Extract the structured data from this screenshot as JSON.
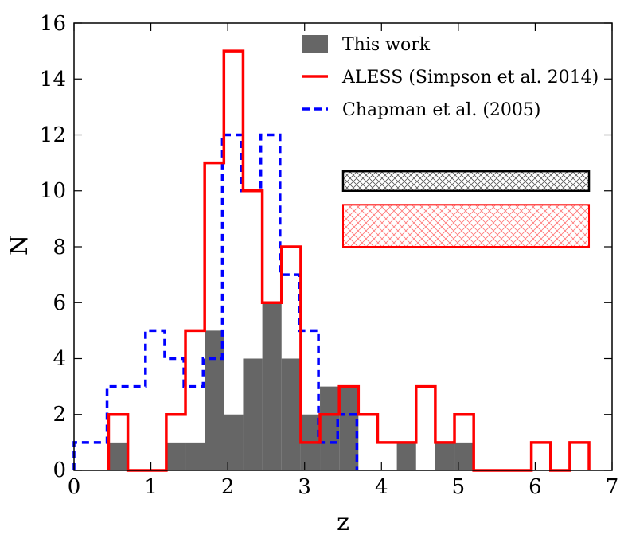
{
  "chart_data": {
    "type": "histogram",
    "title": "",
    "xlabel": "z",
    "ylabel": "N",
    "xlim": [
      0,
      7
    ],
    "ylim": [
      0,
      16
    ],
    "x_ticks": [
      "0",
      "1",
      "2",
      "3",
      "4",
      "5",
      "6",
      "7"
    ],
    "y_ticks": [
      "0",
      "2",
      "4",
      "6",
      "8",
      "10",
      "12",
      "14",
      "16"
    ],
    "grid": false,
    "legend": {
      "position": "top-right",
      "entries": [
        {
          "label": "This work",
          "style": "filled",
          "color": "#666666"
        },
        {
          "label": "ALESS (Simpson et al. 2014)",
          "style": "solid",
          "color": "#ff0000"
        },
        {
          "label": "Chapman et al. (2005)",
          "style": "dashed",
          "color": "#0000ff"
        }
      ]
    },
    "series": [
      {
        "name": "This work",
        "style": "filled",
        "color": "#666666",
        "bin_width": 0.25,
        "bins": [
          {
            "x0": 0.45,
            "value": 1
          },
          {
            "x0": 0.7,
            "value": 0
          },
          {
            "x0": 0.95,
            "value": 0
          },
          {
            "x0": 1.2,
            "value": 1
          },
          {
            "x0": 1.45,
            "value": 1
          },
          {
            "x0": 1.7,
            "value": 5
          },
          {
            "x0": 1.95,
            "value": 2
          },
          {
            "x0": 2.2,
            "value": 4
          },
          {
            "x0": 2.45,
            "value": 6
          },
          {
            "x0": 2.7,
            "value": 4
          },
          {
            "x0": 2.95,
            "value": 2
          },
          {
            "x0": 3.2,
            "value": 3
          },
          {
            "x0": 3.45,
            "value": 3
          },
          {
            "x0": 3.7,
            "value": 0
          },
          {
            "x0": 3.95,
            "value": 0
          },
          {
            "x0": 4.2,
            "value": 1
          },
          {
            "x0": 4.45,
            "value": 0
          },
          {
            "x0": 4.7,
            "value": 1
          },
          {
            "x0": 4.95,
            "value": 1
          }
        ]
      },
      {
        "name": "ALESS (Simpson et al. 2014)",
        "style": "solid",
        "color": "#ff0000",
        "bin_width": 0.25,
        "bins": [
          {
            "x0": 0.45,
            "value": 2
          },
          {
            "x0": 0.7,
            "value": 0
          },
          {
            "x0": 0.95,
            "value": 0
          },
          {
            "x0": 1.2,
            "value": 2
          },
          {
            "x0": 1.45,
            "value": 5
          },
          {
            "x0": 1.7,
            "value": 11
          },
          {
            "x0": 1.95,
            "value": 15
          },
          {
            "x0": 2.2,
            "value": 10
          },
          {
            "x0": 2.45,
            "value": 6
          },
          {
            "x0": 2.7,
            "value": 8
          },
          {
            "x0": 2.95,
            "value": 1
          },
          {
            "x0": 3.2,
            "value": 2
          },
          {
            "x0": 3.45,
            "value": 3
          },
          {
            "x0": 3.7,
            "value": 2
          },
          {
            "x0": 3.95,
            "value": 1
          },
          {
            "x0": 4.2,
            "value": 1
          },
          {
            "x0": 4.45,
            "value": 3
          },
          {
            "x0": 4.7,
            "value": 1
          },
          {
            "x0": 4.95,
            "value": 2
          },
          {
            "x0": 5.2,
            "value": 0
          },
          {
            "x0": 5.45,
            "value": 0
          },
          {
            "x0": 5.7,
            "value": 0
          },
          {
            "x0": 5.95,
            "value": 1
          },
          {
            "x0": 6.2,
            "value": 0
          },
          {
            "x0": 6.45,
            "value": 1
          }
        ]
      },
      {
        "name": "Chapman et al. (2005)",
        "style": "dashed",
        "color": "#0000ff",
        "bin_width": 0.25,
        "bins": [
          {
            "x0": 0.0,
            "value": 1
          },
          {
            "x0": 0.18,
            "value": 1
          },
          {
            "x0": 0.43,
            "value": 3
          },
          {
            "x0": 0.68,
            "value": 3
          },
          {
            "x0": 0.93,
            "value": 5
          },
          {
            "x0": 1.18,
            "value": 4
          },
          {
            "x0": 1.43,
            "value": 3
          },
          {
            "x0": 1.68,
            "value": 4
          },
          {
            "x0": 1.93,
            "value": 12
          },
          {
            "x0": 2.18,
            "value": 10
          },
          {
            "x0": 2.43,
            "value": 12
          },
          {
            "x0": 2.68,
            "value": 7
          },
          {
            "x0": 2.93,
            "value": 5
          },
          {
            "x0": 3.18,
            "value": 1
          },
          {
            "x0": 3.43,
            "value": 2
          }
        ]
      }
    ],
    "annotations": [
      {
        "name": "this-work-range-box",
        "type": "hatched-box",
        "x_range": [
          3.5,
          6.7
        ],
        "y_range": [
          10.0,
          10.7
        ],
        "edge_color": "#000000",
        "hatch_color": "#555555"
      },
      {
        "name": "aless-range-box",
        "type": "hatched-box",
        "x_range": [
          3.5,
          6.7
        ],
        "y_range": [
          8.0,
          9.5
        ],
        "edge_color": "#ff0000",
        "hatch_color": "#ff6666"
      }
    ]
  }
}
